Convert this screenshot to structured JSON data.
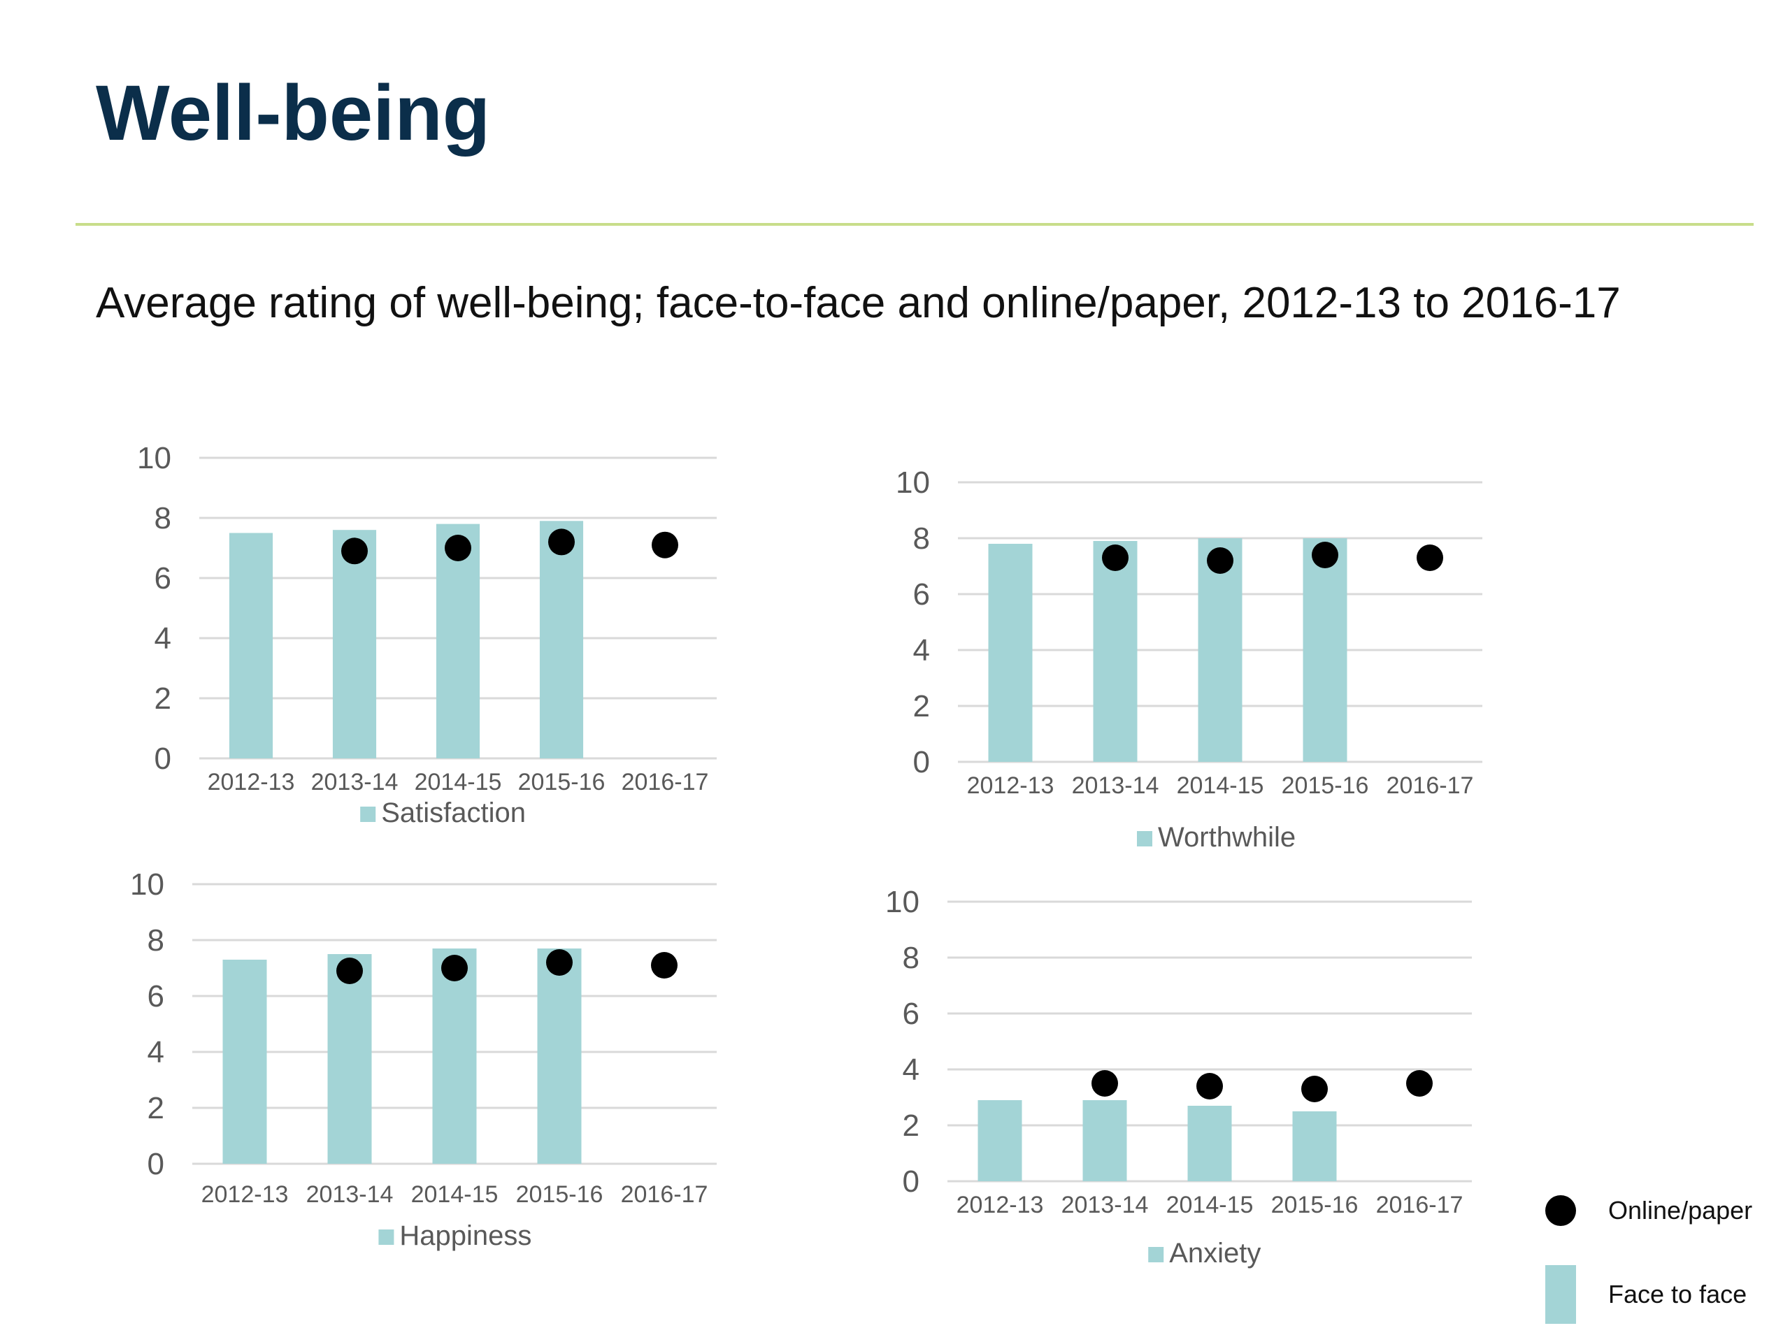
{
  "page": {
    "title": "Well-being",
    "subtitle": "Average rating of well-being; face-to-face and online/paper, 2012-13 to 2016-17"
  },
  "colors": {
    "bar": "#a3d4d6",
    "dot": "#000000",
    "grid": "#d9d9d9",
    "tick_text": "#595959",
    "title": "#0b2e4a",
    "rule": "#c8dd8a"
  },
  "legend": {
    "items": [
      {
        "label": "Online/paper",
        "marker": "dot"
      },
      {
        "label": "Face to face",
        "marker": "bar"
      }
    ]
  },
  "chart_data": [
    {
      "type": "bar",
      "categories": [
        "2012-13",
        "2013-14",
        "2014-15",
        "2015-16",
        "2016-17"
      ],
      "series": [
        {
          "name": "Satisfaction",
          "type": "bar",
          "values": [
            7.5,
            7.6,
            7.8,
            7.9,
            null
          ]
        },
        {
          "name": "",
          "type": "scatter",
          "values": [
            null,
            6.9,
            7.0,
            7.2,
            7.1
          ]
        }
      ],
      "ylim": [
        0,
        10
      ],
      "yticks": [
        0,
        2,
        4,
        6,
        8,
        10
      ],
      "grid": true,
      "legend_position": "bottom"
    },
    {
      "type": "bar",
      "categories": [
        "2012-13",
        "2013-14",
        "2014-15",
        "2015-16",
        "2016-17"
      ],
      "series": [
        {
          "name": "Worthwhile",
          "type": "bar",
          "values": [
            7.8,
            7.9,
            8.0,
            8.0,
            null
          ]
        },
        {
          "name": "",
          "type": "scatter",
          "values": [
            null,
            7.3,
            7.2,
            7.4,
            7.3
          ]
        }
      ],
      "ylim": [
        0,
        10
      ],
      "yticks": [
        0,
        2,
        4,
        6,
        8,
        10
      ],
      "grid": true,
      "legend_position": "bottom"
    },
    {
      "type": "bar",
      "categories": [
        "2012-13",
        "2013-14",
        "2014-15",
        "2015-16",
        "2016-17"
      ],
      "series": [
        {
          "name": "Happiness",
          "type": "bar",
          "values": [
            7.3,
            7.5,
            7.7,
            7.7,
            null
          ]
        },
        {
          "name": "",
          "type": "scatter",
          "values": [
            null,
            6.9,
            7.0,
            7.2,
            7.1
          ]
        }
      ],
      "ylim": [
        0,
        10
      ],
      "yticks": [
        0,
        2,
        4,
        6,
        8,
        10
      ],
      "grid": true,
      "legend_position": "bottom"
    },
    {
      "type": "bar",
      "categories": [
        "2012-13",
        "2013-14",
        "2014-15",
        "2015-16",
        "2016-17"
      ],
      "series": [
        {
          "name": "Anxiety",
          "type": "bar",
          "values": [
            2.9,
            2.9,
            2.7,
            2.5,
            null
          ]
        },
        {
          "name": "",
          "type": "scatter",
          "values": [
            null,
            3.5,
            3.4,
            3.3,
            3.5
          ]
        }
      ],
      "ylim": [
        0,
        10
      ],
      "yticks": [
        0,
        2,
        4,
        6,
        8,
        10
      ],
      "grid": true,
      "legend_position": "bottom"
    }
  ]
}
